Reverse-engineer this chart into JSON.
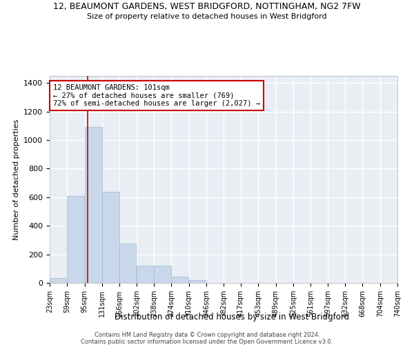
{
  "title": "12, BEAUMONT GARDENS, WEST BRIDGFORD, NOTTINGHAM, NG2 7FW",
  "subtitle": "Size of property relative to detached houses in West Bridgford",
  "xlabel": "Distribution of detached houses by size in West Bridgford",
  "ylabel": "Number of detached properties",
  "bar_color": "#c8d8ea",
  "bar_edge_color": "#a0b8cc",
  "bg_color": "#e8eef4",
  "grid_color": "#ffffff",
  "property_line_x": 101,
  "property_line_color": "#cc0000",
  "annotation_text": "12 BEAUMONT GARDENS: 101sqm\n← 27% of detached houses are smaller (769)\n72% of semi-detached houses are larger (2,027) →",
  "annotation_box_color": "#cc0000",
  "footer_line1": "Contains HM Land Registry data © Crown copyright and database right 2024.",
  "footer_line2": "Contains public sector information licensed under the Open Government Licence v3.0.",
  "bins": [
    23,
    59,
    95,
    131,
    166,
    202,
    238,
    274,
    310,
    346,
    382,
    417,
    453,
    489,
    525,
    561,
    597,
    632,
    668,
    704,
    740
  ],
  "counts": [
    35,
    610,
    1090,
    640,
    275,
    120,
    120,
    45,
    20,
    0,
    0,
    0,
    0,
    0,
    0,
    0,
    0,
    0,
    0,
    0
  ],
  "ylim": [
    0,
    1450
  ],
  "yticks": [
    0,
    200,
    400,
    600,
    800,
    1000,
    1200,
    1400
  ]
}
